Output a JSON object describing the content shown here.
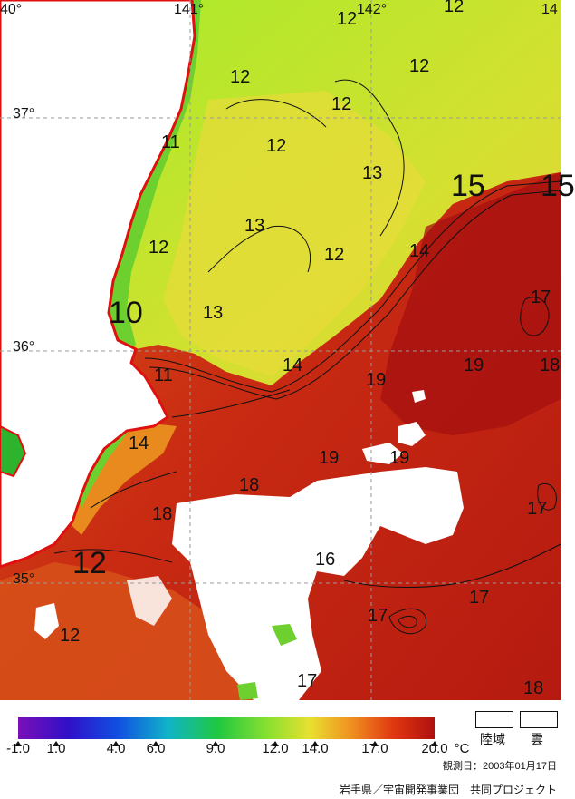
{
  "coords": {
    "lon": [
      "40°",
      "141°",
      "142°",
      "14"
    ],
    "lat": [
      "37°",
      "36°",
      "35°"
    ]
  },
  "contours": [
    "12",
    "12",
    "12",
    "12",
    "12",
    "12",
    "11",
    "12",
    "13",
    "13",
    "12",
    "15",
    "15",
    "12",
    "12",
    "14",
    "10",
    "13",
    "17",
    "14",
    "11",
    "19",
    "19",
    "18",
    "14",
    "19",
    "19",
    "18",
    "17",
    "18",
    "16",
    "17",
    "17",
    "17",
    "18"
  ],
  "legend": {
    "ticks": [
      "-1.0",
      "1.0",
      "4.0",
      "6.0",
      "9.0",
      "12.0",
      "14.0",
      "17.0",
      "20.0"
    ],
    "unit": "°C",
    "land_label": "陸域",
    "cloud_label": "雲"
  },
  "obs_date": "観測日：2003年01月17日",
  "credit": "岩手県／宇宙開発事業団　共同プロジェクト",
  "colors": {
    "land": "#ffffff",
    "coast": "#e01010",
    "cold": "#7a28b8",
    "warm": "#b01010"
  }
}
